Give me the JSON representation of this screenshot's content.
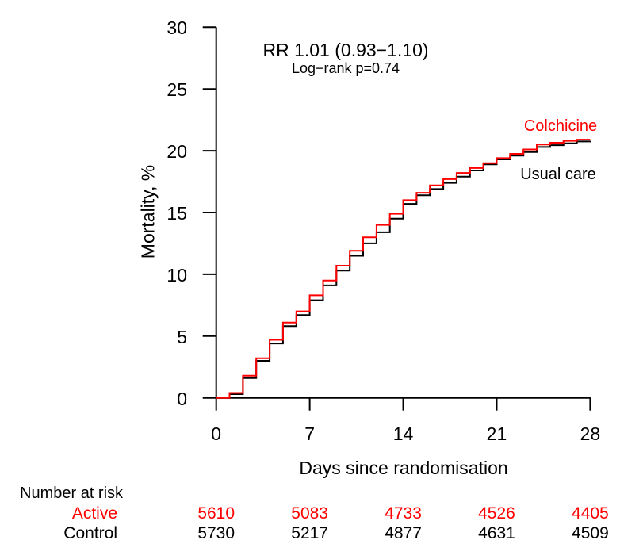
{
  "figure": {
    "annotation_line1": "RR 1.01 (0.93−1.10)",
    "annotation_line2": "Log−rank p=0.74",
    "y_axis_title": "Mortality, %",
    "x_axis_title": "Days since randomisation",
    "curve_label_active": "Colchicine",
    "curve_label_control": "Usual care"
  },
  "colors": {
    "active": "#ff0000",
    "control": "#000000",
    "text": "#000000",
    "background": "#ffffff"
  },
  "chart_data": {
    "type": "line",
    "subtype": "step",
    "title": "",
    "xlabel": "Days since randomisation",
    "ylabel": "Mortality, %",
    "xlim": [
      0,
      28
    ],
    "ylim": [
      0,
      30
    ],
    "x_ticks": [
      0,
      7,
      14,
      21,
      28
    ],
    "y_ticks": [
      0,
      5,
      10,
      15,
      20,
      25,
      30
    ],
    "grid": false,
    "legend_position": "labels-on-plot-right",
    "annotations": [
      "RR 1.01 (0.93−1.10)",
      "Log−rank p=0.74"
    ],
    "x": [
      0,
      1,
      2,
      3,
      4,
      5,
      6,
      7,
      8,
      9,
      10,
      11,
      12,
      13,
      14,
      15,
      16,
      17,
      18,
      19,
      20,
      21,
      22,
      23,
      24,
      25,
      26,
      27,
      28
    ],
    "series": [
      {
        "name": "Usual care",
        "color": "#000000",
        "values": [
          0,
          0.3,
          1.6,
          3.0,
          4.4,
          5.8,
          6.7,
          7.9,
          9.1,
          10.3,
          11.5,
          12.5,
          13.4,
          14.5,
          15.7,
          16.4,
          16.9,
          17.4,
          17.9,
          18.4,
          18.9,
          19.3,
          19.6,
          19.9,
          20.3,
          20.45,
          20.6,
          20.75,
          20.8
        ]
      },
      {
        "name": "Colchicine",
        "color": "#ff0000",
        "values": [
          0,
          0.4,
          1.8,
          3.2,
          4.7,
          6.1,
          7.0,
          8.3,
          9.5,
          10.7,
          11.9,
          13.0,
          14.0,
          14.9,
          16.0,
          16.6,
          17.2,
          17.7,
          18.2,
          18.6,
          19.0,
          19.4,
          19.75,
          20.1,
          20.5,
          20.65,
          20.8,
          20.9,
          20.9
        ]
      }
    ]
  },
  "risk_table": {
    "title": "Number at risk",
    "days": [
      0,
      7,
      14,
      21,
      28
    ],
    "rows": [
      {
        "label": "Active",
        "color": "#ff0000",
        "values": [
          "5610",
          "5083",
          "4733",
          "4526",
          "4405"
        ]
      },
      {
        "label": "Control",
        "color": "#000000",
        "values": [
          "5730",
          "5217",
          "4877",
          "4631",
          "4509"
        ]
      }
    ]
  }
}
